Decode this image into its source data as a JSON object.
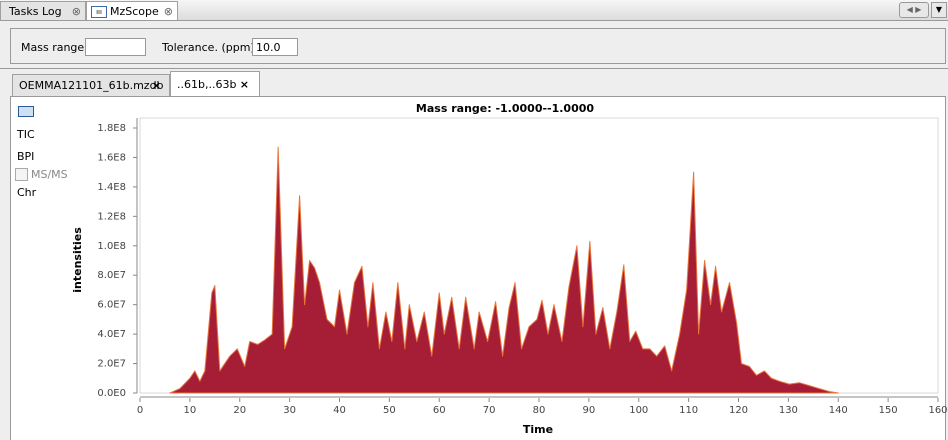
{
  "app_tabs": [
    "Tasks Log",
    "MzScope"
  ],
  "toolbar": {
    "mass_range_label": "Mass range:",
    "tolerance_label": "Tolerance. (ppm):",
    "tolerance_value": "10.0"
  },
  "document_tabs": [
    "OEMMA121101_61b.mzdb",
    "..61b,..63b"
  ],
  "side_menu": {
    "items": [
      "TIC",
      "BPI",
      "Chr"
    ],
    "checkbox": "MS/MS"
  },
  "chart_data": {
    "type": "area",
    "title": "Mass range: -1.0000--1.0000",
    "x_label": "Time",
    "y_label": "intensities",
    "color": "#a51e36",
    "edge_color": "#e8743b",
    "x": [
      6,
      8,
      10,
      11,
      12,
      13,
      14.4,
      15,
      16,
      18,
      19.5,
      21,
      22,
      23.6,
      25,
      26.5,
      27.7,
      29,
      30.5,
      32,
      33,
      34,
      35,
      36,
      37.5,
      39,
      40,
      41.5,
      43,
      44.5,
      45.7,
      46.7,
      48,
      49.3,
      50.5,
      51.7,
      53.1,
      54,
      55.5,
      57,
      58.5,
      60,
      61,
      62.5,
      64,
      65.3,
      67,
      68,
      69.7,
      71.3,
      72.7,
      74,
      75.2,
      76.5,
      78,
      79.6,
      80.6,
      81.8,
      83,
      84.6,
      86,
      87.6,
      88.8,
      90.2,
      91.4,
      92.8,
      94.2,
      95.6,
      97,
      98.2,
      99.4,
      100.8,
      102.2,
      103.6,
      105.2,
      106.6,
      108.2,
      109.6,
      111,
      112,
      113.2,
      114.4,
      115.4,
      116.6,
      118.2,
      119.6,
      120.6,
      122.2,
      123.6,
      125.2,
      126.6,
      128.2,
      130.2,
      132.2,
      134.2,
      136.2,
      138.2,
      140
    ],
    "values": [
      0,
      3000000.0,
      10000000.0,
      15000000.0,
      8000000.0,
      15000000.0,
      68000000.0,
      73000000.0,
      15000000.0,
      25000000.0,
      30000000.0,
      18000000.0,
      35000000.0,
      33000000.0,
      36000000.0,
      40000000.0,
      167000000.0,
      30000000.0,
      45000000.0,
      134000000.0,
      60000000.0,
      90000000.0,
      85000000.0,
      75000000.0,
      50000000.0,
      45000000.0,
      70000000.0,
      40000000.0,
      75000000.0,
      86000000.0,
      45000000.0,
      75000000.0,
      30000000.0,
      55000000.0,
      35000000.0,
      75000000.0,
      30000000.0,
      60000000.0,
      35000000.0,
      55000000.0,
      25000000.0,
      68000000.0,
      40000000.0,
      65000000.0,
      30000000.0,
      65000000.0,
      30000000.0,
      55000000.0,
      35000000.0,
      62000000.0,
      25000000.0,
      58000000.0,
      75000000.0,
      30000000.0,
      45000000.0,
      50000000.0,
      63000000.0,
      40000000.0,
      60000000.0,
      35000000.0,
      72000000.0,
      100000000.0,
      45000000.0,
      103000000.0,
      40000000.0,
      58000000.0,
      30000000.0,
      55000000.0,
      87000000.0,
      35000000.0,
      42000000.0,
      30000000.0,
      30000000.0,
      25000000.0,
      32000000.0,
      15000000.0,
      40000000.0,
      70000000.0,
      150000000.0,
      40000000.0,
      90000000.0,
      60000000.0,
      86000000.0,
      55000000.0,
      75000000.0,
      48000000.0,
      20000000.0,
      18000000.0,
      12000000.0,
      15000000.0,
      10000000.0,
      8000000.0,
      6000000.0,
      7000000.0,
      5000000.0,
      3000000.0,
      1000000.0,
      0
    ],
    "xlim": [
      0,
      160
    ],
    "xticks": [
      0,
      10,
      20,
      30,
      40,
      50,
      60,
      70,
      80,
      90,
      100,
      110,
      120,
      130,
      140,
      150,
      160
    ],
    "ylim": [
      0,
      180000000
    ],
    "yticks": [
      {
        "value": 0,
        "label": "0.0E0"
      },
      {
        "value": 20000000,
        "label": "2.0E7"
      },
      {
        "value": 40000000,
        "label": "4.0E7"
      },
      {
        "value": 60000000,
        "label": "6.0E7"
      },
      {
        "value": 80000000,
        "label": "8.0E7"
      },
      {
        "value": 100000000,
        "label": "1.0E8"
      },
      {
        "value": 120000000,
        "label": "1.2E8"
      },
      {
        "value": 140000000,
        "label": "1.4E8"
      },
      {
        "value": 160000000,
        "label": "1.6E8"
      },
      {
        "value": 180000000,
        "label": "1.8E8"
      }
    ]
  }
}
